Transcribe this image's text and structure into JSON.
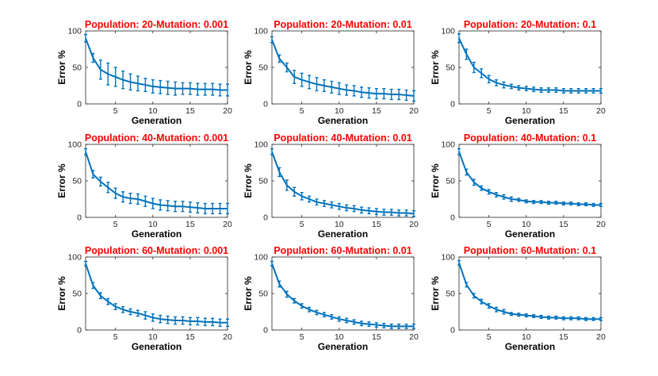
{
  "colors": {
    "series": "#0072BD",
    "title": "#FF0000",
    "axes": "#262626"
  },
  "shared": {
    "xlabel": "Generation",
    "ylabel": "Error %",
    "x_ticks": [
      5,
      10,
      15,
      20
    ],
    "y_ticks": [
      0,
      50,
      100
    ],
    "xlim": [
      1,
      20
    ],
    "ylim": [
      0,
      100
    ]
  },
  "chart_data": [
    {
      "type": "line",
      "title": "Population: 20-Mutation: 0.001",
      "xlabel": "Generation",
      "ylabel": "Error %",
      "xlim": [
        1,
        20
      ],
      "ylim": [
        0,
        100
      ],
      "x": [
        1,
        2,
        3,
        4,
        5,
        6,
        7,
        8,
        9,
        10,
        11,
        12,
        13,
        14,
        15,
        16,
        17,
        18,
        19,
        20
      ],
      "y": [
        90,
        63,
        47,
        41,
        37,
        33,
        30,
        28,
        26,
        24,
        23,
        22,
        21,
        21,
        21,
        20,
        20,
        20,
        19,
        19
      ],
      "err": [
        5,
        6,
        13,
        15,
        13,
        12,
        11,
        10,
        9,
        9,
        9,
        9,
        9,
        8,
        8,
        8,
        8,
        8,
        8,
        8
      ]
    },
    {
      "type": "line",
      "title": "Population: 20-Mutation: 0.01",
      "xlabel": "Generation",
      "ylabel": "Error %",
      "xlim": [
        1,
        20
      ],
      "ylim": [
        0,
        100
      ],
      "x": [
        1,
        2,
        3,
        4,
        5,
        6,
        7,
        8,
        9,
        10,
        11,
        12,
        13,
        14,
        15,
        16,
        17,
        18,
        19,
        20
      ],
      "y": [
        88,
        62,
        50,
        37,
        33,
        30,
        27,
        25,
        23,
        21,
        19,
        18,
        16,
        15,
        14,
        14,
        13,
        13,
        12,
        11
      ],
      "err": [
        4,
        5,
        6,
        9,
        9,
        9,
        9,
        8,
        8,
        8,
        7,
        7,
        7,
        7,
        7,
        7,
        7,
        7,
        7,
        7
      ]
    },
    {
      "type": "line",
      "title": "Population: 20-Mutation: 0.1",
      "xlabel": "Generation",
      "ylabel": "Error %",
      "xlim": [
        1,
        20
      ],
      "ylim": [
        0,
        100
      ],
      "x": [
        1,
        2,
        3,
        4,
        5,
        6,
        7,
        8,
        9,
        10,
        11,
        12,
        13,
        14,
        15,
        16,
        17,
        18,
        19,
        20
      ],
      "y": [
        90,
        68,
        50,
        42,
        34,
        29,
        26,
        24,
        22,
        21,
        20,
        19,
        19,
        19,
        18,
        18,
        18,
        18,
        18,
        18
      ],
      "err": [
        6,
        7,
        7,
        6,
        5,
        4,
        4,
        3,
        3,
        3,
        3,
        3,
        3,
        3,
        3,
        3,
        3,
        3,
        3,
        3
      ]
    },
    {
      "type": "line",
      "title": "Population: 40-Mutation: 0.001",
      "xlabel": "Generation",
      "ylabel": "Error %",
      "xlim": [
        1,
        20
      ],
      "ylim": [
        0,
        100
      ],
      "x": [
        1,
        2,
        3,
        4,
        5,
        6,
        7,
        8,
        9,
        10,
        11,
        12,
        13,
        14,
        15,
        16,
        17,
        18,
        19,
        20
      ],
      "y": [
        90,
        59,
        49,
        41,
        33,
        28,
        26,
        25,
        22,
        19,
        17,
        16,
        15,
        15,
        14,
        13,
        12,
        12,
        12,
        12
      ],
      "err": [
        4,
        5,
        6,
        7,
        7,
        7,
        7,
        7,
        7,
        7,
        7,
        7,
        7,
        7,
        7,
        7,
        7,
        7,
        7,
        7
      ]
    },
    {
      "type": "line",
      "title": "Population: 40-Mutation: 0.01",
      "xlabel": "Generation",
      "ylabel": "Error %",
      "xlim": [
        1,
        20
      ],
      "ylim": [
        0,
        100
      ],
      "x": [
        1,
        2,
        3,
        4,
        5,
        6,
        7,
        8,
        9,
        10,
        11,
        12,
        13,
        14,
        15,
        16,
        17,
        18,
        19,
        20
      ],
      "y": [
        90,
        62,
        44,
        35,
        29,
        25,
        21,
        19,
        17,
        15,
        13,
        12,
        10,
        9,
        8,
        7,
        7,
        6,
        6,
        5
      ],
      "err": [
        4,
        6,
        7,
        6,
        5,
        4,
        4,
        4,
        4,
        4,
        4,
        4,
        4,
        4,
        4,
        4,
        4,
        4,
        4,
        4
      ]
    },
    {
      "type": "line",
      "title": "Population: 40-Mutation: 0.1",
      "xlabel": "Generation",
      "ylabel": "Error %",
      "xlim": [
        1,
        20
      ],
      "ylim": [
        0,
        100
      ],
      "x": [
        1,
        2,
        3,
        4,
        5,
        6,
        7,
        8,
        9,
        10,
        11,
        12,
        13,
        14,
        15,
        16,
        17,
        18,
        19,
        20
      ],
      "y": [
        90,
        62,
        48,
        40,
        35,
        31,
        28,
        25,
        24,
        22,
        21,
        21,
        20,
        20,
        19,
        19,
        18,
        18,
        17,
        17
      ],
      "err": [
        4,
        4,
        4,
        3,
        3,
        3,
        3,
        3,
        2,
        2,
        2,
        2,
        2,
        2,
        2,
        2,
        2,
        2,
        2,
        2
      ]
    },
    {
      "type": "line",
      "title": "Population: 60-Mutation: 0.001",
      "xlabel": "Generation",
      "ylabel": "Error %",
      "xlim": [
        1,
        20
      ],
      "ylim": [
        0,
        100
      ],
      "x": [
        1,
        2,
        3,
        4,
        5,
        6,
        7,
        8,
        9,
        10,
        11,
        12,
        13,
        14,
        15,
        16,
        17,
        18,
        19,
        20
      ],
      "y": [
        91,
        61,
        47,
        39,
        32,
        28,
        25,
        23,
        20,
        17,
        15,
        14,
        13,
        13,
        12,
        12,
        11,
        11,
        10,
        10
      ],
      "err": [
        3,
        4,
        4,
        4,
        4,
        4,
        4,
        4,
        5,
        5,
        5,
        5,
        5,
        5,
        5,
        5,
        5,
        5,
        5,
        5
      ]
    },
    {
      "type": "line",
      "title": "Population: 60-Mutation: 0.01",
      "xlabel": "Generation",
      "ylabel": "Error %",
      "xlim": [
        1,
        20
      ],
      "ylim": [
        0,
        100
      ],
      "x": [
        1,
        2,
        3,
        4,
        5,
        6,
        7,
        8,
        9,
        10,
        11,
        12,
        13,
        14,
        15,
        16,
        17,
        18,
        19,
        20
      ],
      "y": [
        91,
        63,
        49,
        40,
        33,
        28,
        24,
        21,
        18,
        15,
        13,
        11,
        9,
        8,
        7,
        6,
        5,
        5,
        5,
        5
      ],
      "err": [
        3,
        4,
        4,
        3,
        3,
        3,
        3,
        3,
        3,
        3,
        3,
        3,
        3,
        3,
        3,
        3,
        3,
        3,
        3,
        3
      ]
    },
    {
      "type": "line",
      "title": "Population: 60-Mutation: 0.1",
      "xlabel": "Generation",
      "ylabel": "Error %",
      "xlim": [
        1,
        20
      ],
      "ylim": [
        0,
        100
      ],
      "x": [
        1,
        2,
        3,
        4,
        5,
        6,
        7,
        8,
        9,
        10,
        11,
        12,
        13,
        14,
        15,
        16,
        17,
        18,
        19,
        20
      ],
      "y": [
        92,
        62,
        47,
        39,
        33,
        28,
        25,
        22,
        21,
        20,
        19,
        18,
        17,
        17,
        16,
        16,
        16,
        15,
        15,
        15
      ],
      "err": [
        3,
        3,
        3,
        3,
        3,
        3,
        3,
        2,
        2,
        2,
        2,
        2,
        2,
        2,
        2,
        2,
        2,
        2,
        2,
        2
      ]
    }
  ]
}
